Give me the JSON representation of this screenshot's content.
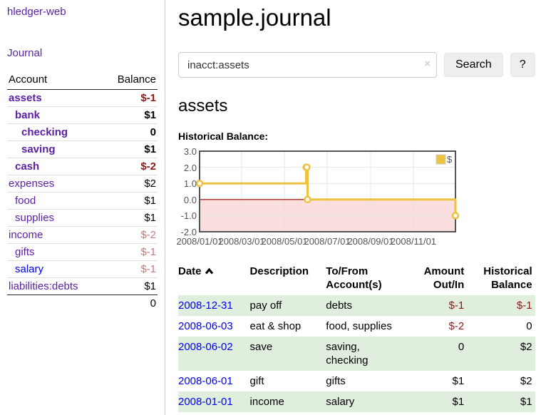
{
  "app": {
    "title": "hledger-web"
  },
  "sidebar": {
    "journal_link": "Journal",
    "accounts_header": {
      "account": "Account",
      "balance": "Balance"
    },
    "accounts": [
      {
        "name": "assets",
        "balance": "$-1",
        "indent": 0,
        "bold": true,
        "balance_style": "neg"
      },
      {
        "name": "bank",
        "balance": "$1",
        "indent": 1,
        "bold": true,
        "balance_style": ""
      },
      {
        "name": "checking",
        "balance": "0",
        "indent": 2,
        "bold": true,
        "balance_style": ""
      },
      {
        "name": "saving",
        "balance": "$1",
        "indent": 2,
        "bold": true,
        "balance_style": ""
      },
      {
        "name": "cash",
        "balance": "$-2",
        "indent": 1,
        "bold": true,
        "balance_style": "neg"
      },
      {
        "name": "expenses",
        "balance": "$2",
        "indent": 0,
        "bold": false,
        "balance_style": ""
      },
      {
        "name": "food",
        "balance": "$1",
        "indent": 1,
        "bold": false,
        "balance_style": ""
      },
      {
        "name": "supplies",
        "balance": "$1",
        "indent": 1,
        "bold": false,
        "balance_style": ""
      },
      {
        "name": "income",
        "balance": "$-2",
        "indent": 0,
        "bold": false,
        "balance_style": "negl"
      },
      {
        "name": "gifts",
        "balance": "$-1",
        "indent": 1,
        "bold": false,
        "balance_style": "negl"
      },
      {
        "name": "salary",
        "balance": "$-1",
        "indent": 1,
        "bold": false,
        "balance_style": "negl",
        "unvisited": true
      },
      {
        "name": "liabilities:debts",
        "balance": "$1",
        "indent": 0,
        "bold": false,
        "balance_style": ""
      }
    ],
    "total": "0"
  },
  "header": {
    "title": "sample.journal"
  },
  "search": {
    "value": "inacct:assets",
    "clear_icon": "×",
    "button_label": "Search",
    "help_label": "?"
  },
  "register": {
    "heading": "assets",
    "chart_label": "Historical Balance:"
  },
  "chart_data": {
    "type": "line",
    "title": "Historical Balance",
    "step": true,
    "series": [
      {
        "name": "$",
        "color": "#edc240",
        "points": [
          {
            "date": "2008-01-01",
            "day": 0,
            "value": 1
          },
          {
            "date": "2008-06-01",
            "day": 152,
            "value": 2
          },
          {
            "date": "2008-06-02",
            "day": 153,
            "value": 2
          },
          {
            "date": "2008-06-03",
            "day": 154,
            "value": 0
          },
          {
            "date": "2008-12-31",
            "day": 365,
            "value": -1
          }
        ]
      }
    ],
    "x_range_days": [
      0,
      365
    ],
    "x_ticks": [
      {
        "day": 0,
        "label": "2008/01/01"
      },
      {
        "day": 60,
        "label": "2008/03/01"
      },
      {
        "day": 121,
        "label": "2008/05/01"
      },
      {
        "day": 182,
        "label": "2008/07/01"
      },
      {
        "day": 244,
        "label": "2008/09/01"
      },
      {
        "day": 305,
        "label": "2008/11/01"
      }
    ],
    "ylim": [
      -2,
      3
    ],
    "y_ticks": [
      {
        "v": 3,
        "label": "3.0"
      },
      {
        "v": 2,
        "label": "2.0"
      },
      {
        "v": 1,
        "label": "1.0"
      },
      {
        "v": 0,
        "label": "0.0"
      },
      {
        "v": -1,
        "label": "-1.0"
      },
      {
        "v": -2,
        "label": "-2.0"
      }
    ],
    "legend": {
      "label": "$",
      "position": "top-right"
    },
    "grid": true,
    "colors": {
      "line": "#edc240",
      "marker_fill": "#ffffff",
      "negative_fill": "#fbdede",
      "zero_line": "#a40000",
      "grid": "#e4e4e4",
      "border": "#545454",
      "tick_text": "#545454"
    }
  },
  "table": {
    "headers": {
      "date": "Date",
      "description": "Description",
      "accounts": "To/From Account(s)",
      "amount": "Amount Out/In",
      "balance": "Historical Balance"
    },
    "sort_icon_name": "chevron-up",
    "rows": [
      {
        "date": "2008-12-31",
        "description": "pay off",
        "accounts": "debts",
        "amount": "$-1",
        "balance": "$-1",
        "amount_neg": true,
        "balance_neg": true
      },
      {
        "date": "2008-06-03",
        "description": "eat & shop",
        "accounts": "food, supplies",
        "amount": "$-2",
        "balance": "0",
        "amount_neg": true,
        "balance_neg": false
      },
      {
        "date": "2008-06-02",
        "description": "save",
        "accounts": "saving, checking",
        "amount": "0",
        "balance": "$2",
        "amount_neg": false,
        "balance_neg": false
      },
      {
        "date": "2008-06-01",
        "description": "gift",
        "accounts": "gifts",
        "amount": "$1",
        "balance": "$2",
        "amount_neg": false,
        "balance_neg": false
      },
      {
        "date": "2008-01-01",
        "description": "income",
        "accounts": "salary",
        "amount": "$1",
        "balance": "$1",
        "amount_neg": false,
        "balance_neg": false
      }
    ]
  }
}
